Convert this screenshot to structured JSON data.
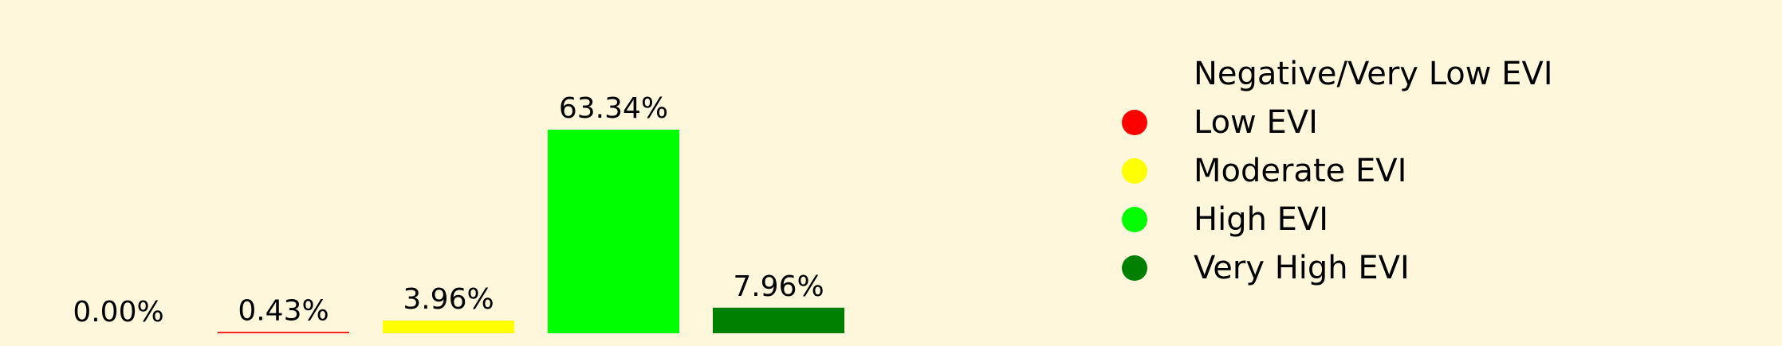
{
  "chart_data": {
    "type": "bar",
    "categories": [
      "Negative/Very Low EVI",
      "Low EVI",
      "Moderate EVI",
      "High EVI",
      "Very High EVI"
    ],
    "values": [
      0.0,
      0.43,
      3.96,
      63.34,
      7.96
    ],
    "data_labels": [
      "0.00%",
      "0.43%",
      "3.96%",
      "63.34%",
      "7.96%"
    ],
    "colors": [
      "#fff7dc",
      "#ff0000",
      "#ffff00",
      "#00ff00",
      "#008000"
    ],
    "title": "",
    "xlabel": "",
    "ylabel": "",
    "ylim": [
      0,
      63.34
    ],
    "grid": false,
    "axes_visible": false,
    "legend_position": "right"
  }
}
